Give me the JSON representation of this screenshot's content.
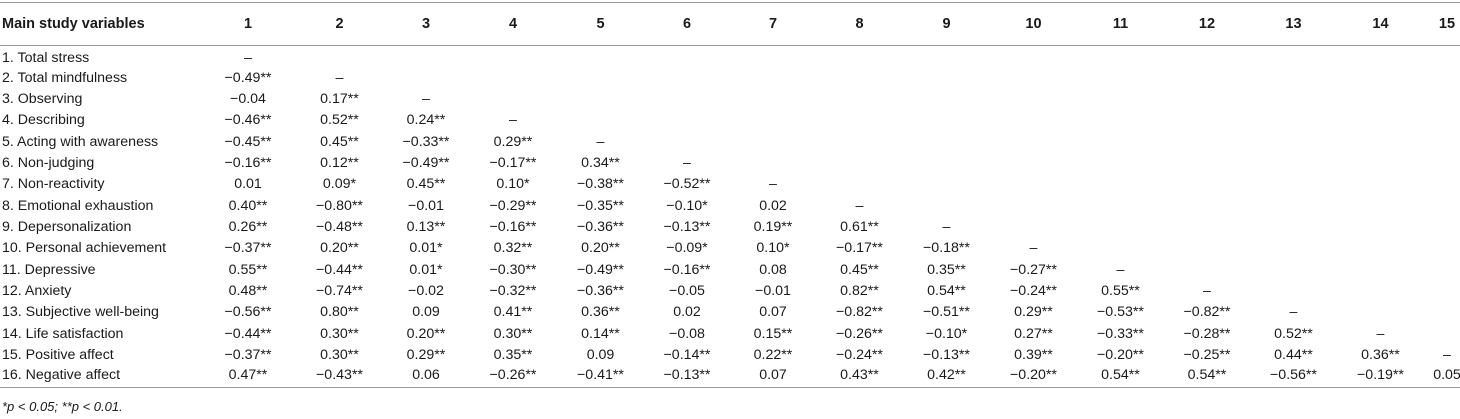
{
  "table": {
    "row_header": "Main study variables",
    "columns": [
      "1",
      "2",
      "3",
      "4",
      "5",
      "6",
      "7",
      "8",
      "9",
      "10",
      "11",
      "12",
      "13",
      "14",
      "15"
    ],
    "rows": [
      {
        "label": "1. Total stress",
        "cells": [
          "–",
          "",
          "",
          "",
          "",
          "",
          "",
          "",
          "",
          "",
          "",
          "",
          "",
          "",
          ""
        ]
      },
      {
        "label": "2. Total mindfulness",
        "cells": [
          "−0.49**",
          "–",
          "",
          "",
          "",
          "",
          "",
          "",
          "",
          "",
          "",
          "",
          "",
          "",
          ""
        ]
      },
      {
        "label": "3. Observing",
        "cells": [
          "−0.04",
          "0.17**",
          "–",
          "",
          "",
          "",
          "",
          "",
          "",
          "",
          "",
          "",
          "",
          "",
          ""
        ]
      },
      {
        "label": "4. Describing",
        "cells": [
          "−0.46**",
          "0.52**",
          "0.24**",
          "–",
          "",
          "",
          "",
          "",
          "",
          "",
          "",
          "",
          "",
          "",
          ""
        ]
      },
      {
        "label": "5. Acting with awareness",
        "cells": [
          "−0.45**",
          "0.45**",
          "−0.33**",
          "0.29**",
          "–",
          "",
          "",
          "",
          "",
          "",
          "",
          "",
          "",
          "",
          ""
        ]
      },
      {
        "label": "6. Non-judging",
        "cells": [
          "−0.16**",
          "0.12**",
          "−0.49**",
          "−0.17**",
          "0.34**",
          "–",
          "",
          "",
          "",
          "",
          "",
          "",
          "",
          "",
          ""
        ]
      },
      {
        "label": "7. Non-reactivity",
        "cells": [
          "0.01",
          "0.09*",
          "0.45**",
          "0.10*",
          "−0.38**",
          "−0.52**",
          "–",
          "",
          "",
          "",
          "",
          "",
          "",
          "",
          ""
        ]
      },
      {
        "label": "8. Emotional exhaustion",
        "cells": [
          "0.40**",
          "−0.80**",
          "−0.01",
          "−0.29**",
          "−0.35**",
          "−0.10*",
          "0.02",
          "–",
          "",
          "",
          "",
          "",
          "",
          "",
          ""
        ]
      },
      {
        "label": "9. Depersonalization",
        "cells": [
          "0.26**",
          "−0.48**",
          "0.13**",
          "−0.16**",
          "−0.36**",
          "−0.13**",
          "0.19**",
          "0.61**",
          "–",
          "",
          "",
          "",
          "",
          "",
          ""
        ]
      },
      {
        "label": "10. Personal achievement",
        "cells": [
          "−0.37**",
          "0.20**",
          "0.01*",
          "0.32**",
          "0.20**",
          "−0.09*",
          "0.10*",
          "−0.17**",
          "−0.18**",
          "–",
          "",
          "",
          "",
          "",
          ""
        ]
      },
      {
        "label": "11. Depressive",
        "cells": [
          "0.55**",
          "−0.44**",
          "0.01*",
          "−0.30**",
          "−0.49**",
          "−0.16**",
          "0.08",
          "0.45**",
          "0.35**",
          "−0.27**",
          "–",
          "",
          "",
          "",
          ""
        ]
      },
      {
        "label": "12. Anxiety",
        "cells": [
          "0.48**",
          "−0.74**",
          "−0.02",
          "−0.32**",
          "−0.36**",
          "−0.05",
          "−0.01",
          "0.82**",
          "0.54**",
          "−0.24**",
          "0.55**",
          "–",
          "",
          "",
          ""
        ]
      },
      {
        "label": "13. Subjective well-being",
        "cells": [
          "−0.56**",
          "0.80**",
          "0.09",
          "0.41**",
          "0.36**",
          "0.02",
          "0.07",
          "−0.82**",
          "−0.51**",
          "0.29**",
          "−0.53**",
          "−0.82**",
          "–",
          "",
          ""
        ]
      },
      {
        "label": "14. Life satisfaction",
        "cells": [
          "−0.44**",
          "0.30**",
          "0.20**",
          "0.30**",
          "0.14**",
          "−0.08",
          "0.15**",
          "−0.26**",
          "−0.10*",
          "0.27**",
          "−0.33**",
          "−0.28**",
          "0.52**",
          "–",
          ""
        ]
      },
      {
        "label": "15. Positive affect",
        "cells": [
          "−0.37**",
          "0.30**",
          "0.29**",
          "0.35**",
          "0.09",
          "−0.14**",
          "0.22**",
          "−0.24**",
          "−0.13**",
          "0.39**",
          "−0.20**",
          "−0.25**",
          "0.44**",
          "0.36**",
          "–"
        ]
      },
      {
        "label": "16. Negative affect",
        "cells": [
          "0.47**",
          "−0.43**",
          "0.06",
          "−0.26**",
          "−0.41**",
          "−0.13**",
          "0.07",
          "0.43**",
          "0.42**",
          "−0.20**",
          "0.54**",
          "0.54**",
          "−0.56**",
          "−0.19**",
          "0.05"
        ]
      }
    ]
  },
  "footnote": "*p < 0.05; **p < 0.01."
}
